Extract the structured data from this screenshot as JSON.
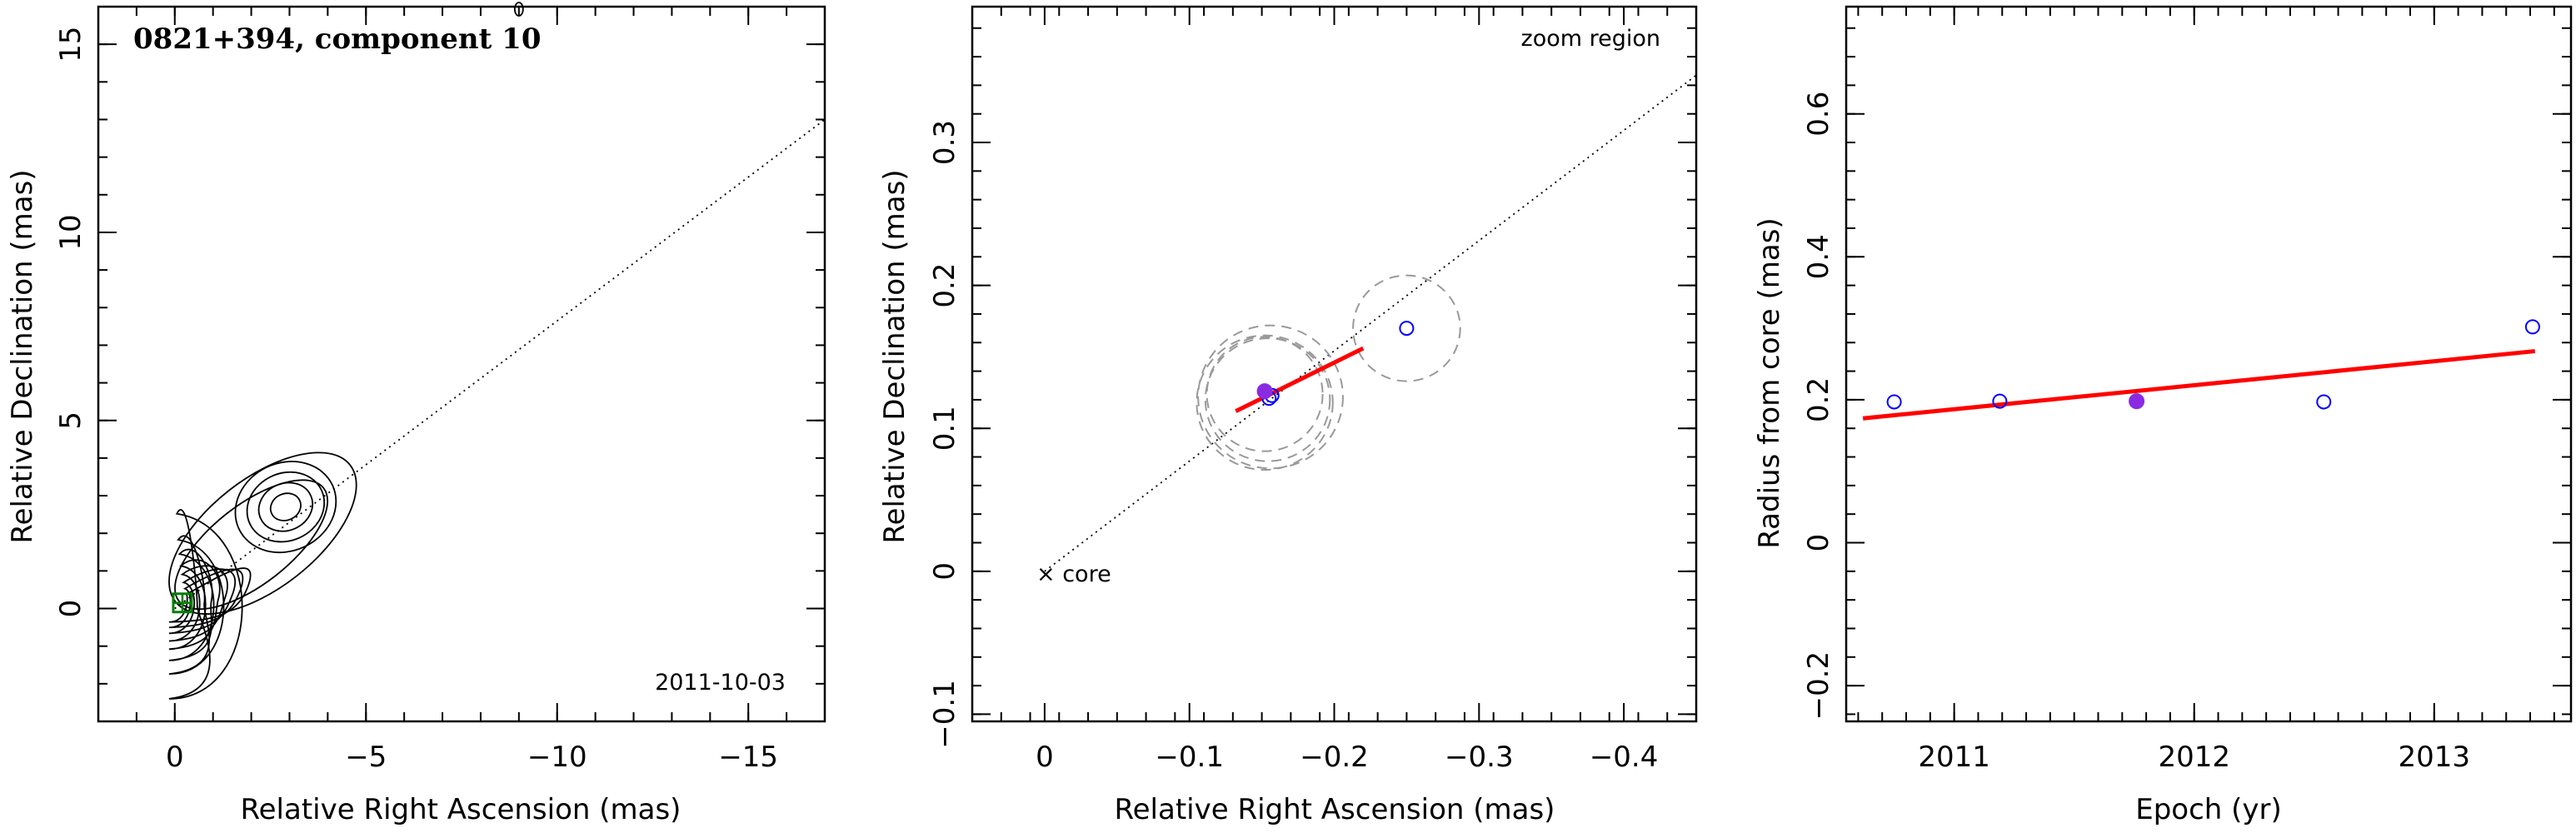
{
  "chart_data": [
    {
      "type": "contour",
      "title": "0821+394, component 10",
      "xlabel": "Relative Right Ascension (mas)",
      "ylabel": "Relative Declination (mas)",
      "xlim": [
        2,
        -17
      ],
      "ylim": [
        -3,
        16
      ],
      "xticks": [
        0,
        -5,
        -10,
        -15
      ],
      "xtick_labels": [
        "0",
        "−5",
        "−10",
        "−15"
      ],
      "yticks": [
        0,
        5,
        10,
        15
      ],
      "ytick_labels": [
        "0",
        "5",
        "10",
        "15"
      ],
      "annotation": "2011-10-03",
      "core_levels": [
        2.0,
        1.45,
        1.15,
        0.9,
        0.72,
        0.55,
        0.42,
        0.3
      ],
      "knot_center": [
        -2.9,
        2.7
      ],
      "knot_levels": [
        1.5,
        1.15,
        0.8,
        0.45
      ],
      "component_marker": {
        "x": -0.2,
        "y": 0.15
      },
      "direction_line": {
        "from": [
          0,
          0
        ],
        "to": [
          -17,
          13.0
        ]
      },
      "colors": {
        "contour": "#000000",
        "component": "#008000"
      }
    },
    {
      "type": "scatter",
      "xlabel": "Relative Right Ascension (mas)",
      "ylabel": "Relative Declination (mas)",
      "xlim": [
        0.05,
        -0.45
      ],
      "ylim": [
        -0.105,
        0.395
      ],
      "xticks": [
        0,
        -0.1,
        -0.2,
        -0.3,
        -0.4
      ],
      "xtick_labels": [
        "0",
        "−0.1",
        "−0.2",
        "−0.3",
        "−0.4"
      ],
      "yticks": [
        -0.1,
        0,
        0.1,
        0.2,
        0.3
      ],
      "ytick_labels": [
        "−0.1",
        "0",
        "0.1",
        "0.2",
        "0.3"
      ],
      "zoom_label": "zoom region",
      "core_label": "× core",
      "open_points": [
        {
          "x": -0.155,
          "y": 0.121
        },
        {
          "x": -0.157,
          "y": 0.123
        },
        {
          "x": -0.25,
          "y": 0.17
        }
      ],
      "filled_point": {
        "x": -0.152,
        "y": 0.126
      },
      "gaussian_circles": [
        {
          "x": -0.152,
          "y": 0.124,
          "r": 0.04
        },
        {
          "x": -0.154,
          "y": 0.12,
          "r": 0.043
        },
        {
          "x": -0.152,
          "y": 0.118,
          "r": 0.047
        },
        {
          "x": -0.156,
          "y": 0.122,
          "r": 0.05
        },
        {
          "x": -0.25,
          "y": 0.17,
          "r": 0.037
        }
      ],
      "fit_line": {
        "from": [
          -0.132,
          0.112
        ],
        "to": [
          -0.22,
          0.156
        ]
      },
      "direction_line": {
        "from": [
          0,
          0
        ],
        "to": [
          -0.45,
          0.347
        ]
      },
      "colors": {
        "points": "#0000ff",
        "filled": "#8a2be2",
        "fit": "#ff0000",
        "circles": "#999999"
      }
    },
    {
      "type": "scatter",
      "xlabel": "Epoch (yr)",
      "ylabel": "Radius from core (mas)",
      "xlim": [
        2010.55,
        2013.57
      ],
      "ylim": [
        -0.25,
        0.75
      ],
      "xticks": [
        2011,
        2012,
        2013
      ],
      "xtick_labels": [
        "2011",
        "2012",
        "2013"
      ],
      "yticks": [
        -0.2,
        0,
        0.2,
        0.4,
        0.6
      ],
      "ytick_labels": [
        "−0.2",
        "0",
        "0.2",
        "0.4",
        "0.6"
      ],
      "open_points": [
        {
          "x": 2010.75,
          "y": 0.197
        },
        {
          "x": 2011.19,
          "y": 0.198
        },
        {
          "x": 2012.54,
          "y": 0.197
        },
        {
          "x": 2013.41,
          "y": 0.302
        }
      ],
      "filled_point": {
        "x": 2011.76,
        "y": 0.198
      },
      "fit_line": {
        "from": [
          2010.62,
          0.174
        ],
        "to": [
          2013.42,
          0.268
        ]
      },
      "colors": {
        "points": "#0000ff",
        "filled": "#8a2be2",
        "fit": "#ff0000"
      }
    }
  ]
}
